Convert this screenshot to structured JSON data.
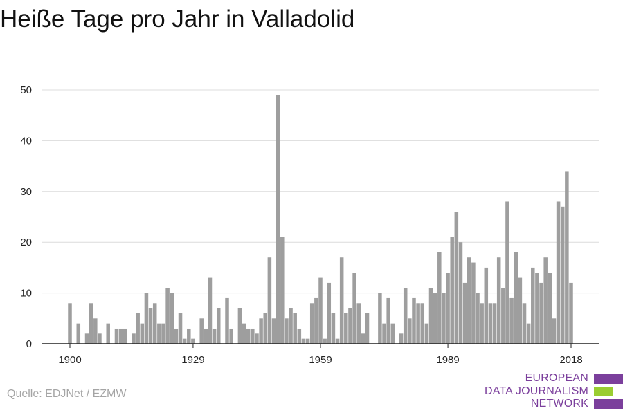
{
  "title": "Heiße Tage pro Jahr in Valladolid",
  "source": "Quelle: EDJNet / EZMW",
  "logo": {
    "lines": [
      "EUROPEAN",
      "DATA JOURNALISM",
      "NETWORK"
    ],
    "colors": [
      "#7b3f9c",
      "#9acd32",
      "#7b3f9c"
    ]
  },
  "chart_data": {
    "type": "bar",
    "title": "Heiße Tage pro Jahr in Valladolid",
    "xlabel": "",
    "ylabel": "",
    "x_start": 1900,
    "x_end": 2018,
    "x_ticks": [
      "1900",
      "1929",
      "1959",
      "1989",
      "2018"
    ],
    "y_ticks": [
      "0",
      "10",
      "20",
      "30",
      "40",
      "50"
    ],
    "ylim": [
      0,
      50
    ],
    "bar_color": "#9e9e9e",
    "grid": true,
    "values": [
      8,
      0,
      4,
      0,
      2,
      8,
      5,
      2,
      0,
      4,
      0,
      3,
      3,
      3,
      0,
      2,
      6,
      4,
      10,
      7,
      8,
      4,
      4,
      11,
      10,
      3,
      6,
      1,
      3,
      1,
      0,
      5,
      3,
      13,
      3,
      7,
      0,
      9,
      3,
      0,
      7,
      4,
      3,
      3,
      2,
      5,
      6,
      17,
      5,
      49,
      21,
      5,
      7,
      6,
      3,
      1,
      1,
      8,
      9,
      13,
      1,
      12,
      6,
      1,
      17,
      6,
      7,
      14,
      8,
      2,
      6,
      0,
      0,
      10,
      4,
      9,
      4,
      0,
      2,
      11,
      5,
      9,
      8,
      8,
      4,
      11,
      10,
      18,
      10,
      14,
      21,
      26,
      20,
      12,
      17,
      16,
      10,
      8,
      15,
      8,
      8,
      17,
      11,
      28,
      9,
      18,
      13,
      8,
      4,
      15,
      14,
      12,
      17,
      14,
      5,
      28,
      27,
      34,
      12
    ]
  }
}
